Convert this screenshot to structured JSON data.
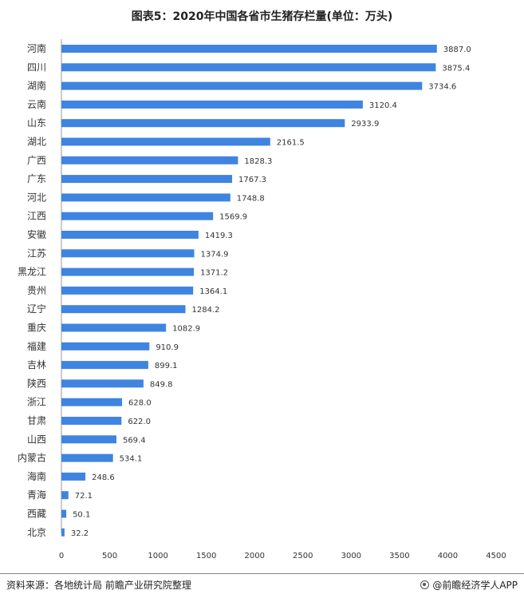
{
  "title": "图表5：2020年中国各省市生猪存栏量(单位：万头)",
  "footer": {
    "source": "资料来源：各地统计局 前瞻产业研究院整理",
    "brand": "@前瞻经济学人APP"
  },
  "colors": {
    "bar": "#3f84e0",
    "axis": "#999999",
    "text": "#333333"
  },
  "chart_data": {
    "type": "bar",
    "orientation": "horizontal",
    "title": "图表5：2020年中国各省市生猪存栏量(单位：万头)",
    "xlabel": "",
    "ylabel": "",
    "xlim": [
      0,
      4500
    ],
    "xticks": [
      0,
      500,
      1000,
      1500,
      2000,
      2500,
      3000,
      3500,
      4000,
      4500
    ],
    "grid": false,
    "categories": [
      "河南",
      "四川",
      "湖南",
      "云南",
      "山东",
      "湖北",
      "广西",
      "广东",
      "河北",
      "江西",
      "安徽",
      "江苏",
      "黑龙江",
      "贵州",
      "辽宁",
      "重庆",
      "福建",
      "吉林",
      "陕西",
      "浙江",
      "甘肃",
      "山西",
      "内蒙古",
      "海南",
      "青海",
      "西藏",
      "北京"
    ],
    "values": [
      3887.0,
      3875.4,
      3734.6,
      3120.4,
      2933.9,
      2161.5,
      1828.3,
      1767.3,
      1748.8,
      1569.9,
      1419.3,
      1374.9,
      1371.2,
      1364.1,
      1284.2,
      1082.9,
      910.9,
      899.1,
      849.8,
      628.0,
      622.0,
      569.4,
      534.1,
      248.6,
      72.1,
      50.1,
      32.2
    ],
    "value_labels": [
      "3887.0",
      "3875.4",
      "3734.6",
      "3120.4",
      "2933.9",
      "2161.5",
      "1828.3",
      "1767.3",
      "1748.8",
      "1569.9",
      "1419.3",
      "1374.9",
      "1371.2",
      "1364.1",
      "1284.2",
      "1082.9",
      "910.9",
      "899.1",
      "849.8",
      "628.0",
      "622.0",
      "569.4",
      "534.1",
      "248.6",
      "72.1",
      "50.1",
      "32.2"
    ]
  }
}
